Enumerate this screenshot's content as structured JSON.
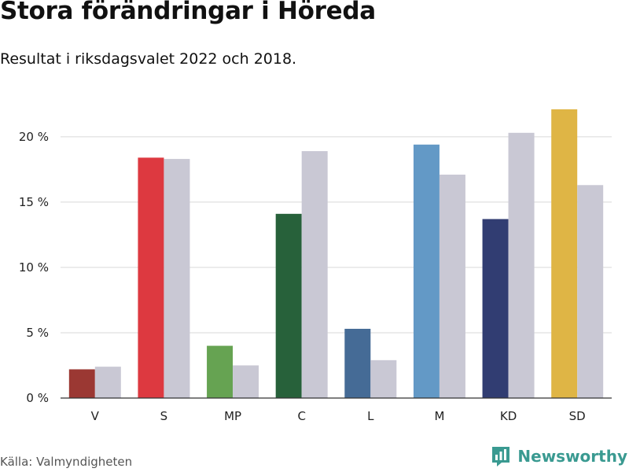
{
  "header": {
    "title": "Stora förändringar i Höreda",
    "subtitle": "Resultat i riksdagsvalet 2022 och 2018."
  },
  "footer": {
    "source": "Källa: Valmyndigheten",
    "brand": "Newsworthy",
    "brand_icon": "bar-chart-logo-icon"
  },
  "chart_data": {
    "type": "bar",
    "categories": [
      "V",
      "S",
      "MP",
      "C",
      "L",
      "M",
      "KD",
      "SD"
    ],
    "series": [
      {
        "values": [
          2.2,
          18.4,
          4.0,
          14.1,
          5.3,
          19.4,
          13.7,
          22.1
        ],
        "colors": [
          "#9b3833",
          "#dd3940",
          "#66a352",
          "#27613a",
          "#456b96",
          "#6399c6",
          "#313d72",
          "#dfb545"
        ]
      },
      {
        "values": [
          2.4,
          18.3,
          2.5,
          18.9,
          2.9,
          17.1,
          20.3,
          16.3
        ],
        "color": "#c9c8d4"
      }
    ],
    "ylim": [
      0,
      23
    ],
    "yticks": [
      0,
      5,
      10,
      15,
      20
    ],
    "ytick_labels": [
      "0 %",
      "5 %",
      "10 %",
      "15 %",
      "20 %"
    ],
    "grid": true,
    "legend": "none"
  }
}
